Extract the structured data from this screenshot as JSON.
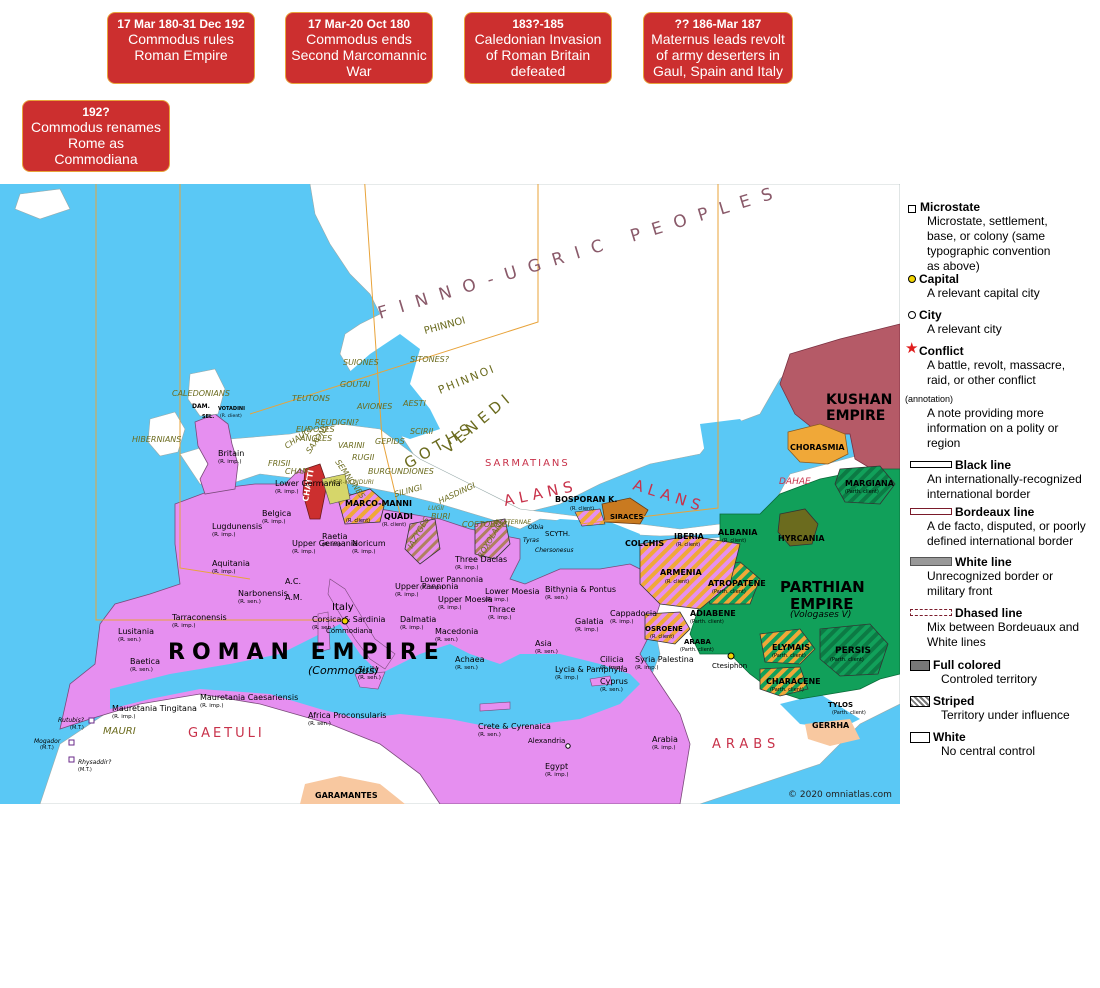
{
  "callouts": [
    {
      "date": "17 Mar 180-31 Dec 192",
      "text": "Commodus rules Roman Empire"
    },
    {
      "date": "17 Mar-20 Oct 180",
      "text": "Commodus ends Second Marcomannic War"
    },
    {
      "date": "183?-185",
      "text": "Caledonian Invasion of Roman Britain defeated"
    },
    {
      "date": "?? 186-Mar 187",
      "text": "Maternus leads revolt of army deserters in Gaul, Spain and Italy"
    },
    {
      "date": "192?",
      "text": "Commodus renames Rome as Commodiana"
    }
  ],
  "colors": {
    "sea": "#5ac8f5",
    "land": "#ffffff",
    "roman": "#e68ff0",
    "parthian": "#11a05a",
    "kushan": "#b55a67",
    "orange": "#f0a838",
    "peach": "#f8c8a0",
    "olive": "#6b6b1e",
    "callout_bg": "#cc2f2f",
    "callout_border": "#e8a33a",
    "people_red": "#c8324a",
    "people_olive": "#6b6b1e",
    "people_mauve": "#8a5a6a"
  },
  "map": {
    "empires": {
      "roman": "ROMAN EMPIRE",
      "roman_ruler": "(Commodus)",
      "parthian_1": "PARTHIAN",
      "parthian_2": "EMPIRE",
      "parthian_ruler": "(Vologases V)",
      "kushan_1": "KUSHAN",
      "kushan_2": "EMPIRE"
    },
    "peoples_large": {
      "finno_ugric": "FINNO-UGRIC PEOPLES",
      "goths": "GOTHS",
      "venedi": "VENEDI",
      "alans_1": "ALANS",
      "alans_2": "ALANS",
      "arabs": "ARABS",
      "gaetuli": "GAETULI",
      "sarmatians": "SARMATIANS",
      "mauri": "MAURI",
      "phinnoi_1": "PHINNOI",
      "phinnoi_2": "PHINNOI",
      "dahae": "DAHAE"
    },
    "peoples_small": {
      "caledonians": "CALEDONIANS",
      "hibernians": "HIBERNIANS",
      "suiones": "SUIONES",
      "sitones": "SITONES?",
      "goutai": "GOUTAI",
      "teutons": "TEUTONS",
      "aviones": "AVIONES",
      "aesti": "AESTI",
      "reudigni": "REUDIGNI?",
      "eudoses": "EUDOSES",
      "angles": "ANGLES",
      "saxons": "SAXONS",
      "varini": "VARINI",
      "semnones": "SEMNONES",
      "gepids": "GEPIDS",
      "scirii": "SCIRII",
      "rugii": "RUGII",
      "burgundiones": "BURGUNDIONES",
      "frisii": "FRISII",
      "chauci": "CHAUCI",
      "cham": "CHAM.",
      "silingi": "SILINGI",
      "hasdingi": "HASDINGI",
      "buri": "BURI",
      "lugii": "LUGII",
      "hermunduri": "HER-MUNDURI",
      "costoboci": "COSTOBOCI",
      "bastarnae": "BASTERNAE",
      "iazyges": "IAZYGES",
      "roxolani": "ROXOLANI"
    },
    "clients": {
      "chatti": "CHATTI",
      "marcomanni": "MARCO-MANNI",
      "marcomanni_sub": "(R. client)",
      "quadi": "QUADI",
      "quadi_sub": "(R. client)",
      "damnonii": "DAM.",
      "votadini": "VOTADINI",
      "votadini_sub": "(R. client)",
      "selg": "SEL.",
      "bosporan": "BOSPORAN K.",
      "bosporan_sub": "(R. client)",
      "siraces": "SIRACES",
      "scythia": "SCYTH.",
      "chorasmia": "CHORASMIA",
      "iberia": "IBERIA",
      "iberia_sub": "(R. client)",
      "albania": "ALBANIA",
      "albania_sub": "(R. client)",
      "colchis": "COLCHIS",
      "hyrcania": "HYRCANIA",
      "margiana": "MARGIANA",
      "margiana_sub": "(Parth. client)",
      "armenia": "ARMENIA",
      "armenia_sub": "(R. client)",
      "atropatene": "ATROPATENE",
      "atropatene_sub": "(Parth. client)",
      "adiabene": "ADIABENE",
      "adiabene_sub": "(Parth. client)",
      "osroene": "OSROENE",
      "osroene_sub": "(R. client)",
      "araba": "ARABA",
      "araba_sub": "(Parth. client)",
      "elymais": "ELYMAIS",
      "elymais_sub": "(Parth. client)",
      "persis": "PERSIS",
      "persis_sub": "(Parth. client)",
      "characene": "CHARACENE",
      "characene_sub": "(Parth. client)",
      "tylos": "TYLOS",
      "tylos_sub": "(Parth. client)",
      "gerrha": "GERRHA",
      "garamantes": "GARAMANTES"
    },
    "provinces": [
      {
        "name": "Britain",
        "sub": "(R. imp.)"
      },
      {
        "name": "Lower Germania",
        "sub": "(R. imp.)"
      },
      {
        "name": "Belgica",
        "sub": "(R. imp.)"
      },
      {
        "name": "Lugdunensis",
        "sub": "(R. imp.)"
      },
      {
        "name": "Upper Germania",
        "sub": "(R. imp.)"
      },
      {
        "name": "Raetia",
        "sub": "(R. imp.)"
      },
      {
        "name": "Noricum",
        "sub": "(R. imp.)"
      },
      {
        "name": "Aquitania",
        "sub": "(R. imp.)"
      },
      {
        "name": "Narbonensis",
        "sub": "(R. sen.)"
      },
      {
        "name": "A.C.",
        "sub": ""
      },
      {
        "name": "A.M.",
        "sub": ""
      },
      {
        "name": "Upper Pannonia",
        "sub": "(R. imp.)"
      },
      {
        "name": "Lower Pannonia",
        "sub": "(R. imp.)"
      },
      {
        "name": "Three Dacias",
        "sub": "(R. imp.)"
      },
      {
        "name": "Dalmatia",
        "sub": "(R. imp.)"
      },
      {
        "name": "Upper Moesia",
        "sub": "(R. imp.)"
      },
      {
        "name": "Lower Moesia",
        "sub": "(R. imp.)"
      },
      {
        "name": "Thrace",
        "sub": "(R. imp.)"
      },
      {
        "name": "Bithynia & Pontus",
        "sub": "(R. sen.)"
      },
      {
        "name": "Galatia",
        "sub": "(R. imp.)"
      },
      {
        "name": "Cappadocia",
        "sub": "(R. imp.)"
      },
      {
        "name": "Tarraconensis",
        "sub": "(R. imp.)"
      },
      {
        "name": "Lusitania",
        "sub": "(R. sen.)"
      },
      {
        "name": "Baetica",
        "sub": "(R. sen.)"
      },
      {
        "name": "Corsica & Sardinia",
        "sub": "(R. sen.)"
      },
      {
        "name": "Sicily",
        "sub": "(R. sen.)"
      },
      {
        "name": "Macedonia",
        "sub": "(R. sen.)"
      },
      {
        "name": "Achaea",
        "sub": "(R. sen.)"
      },
      {
        "name": "Asia",
        "sub": "(R. sen.)"
      },
      {
        "name": "Lycia & Pamphylia",
        "sub": "(R. imp.)"
      },
      {
        "name": "Cilicia",
        "sub": "(R. imp.)"
      },
      {
        "name": "Cyprus",
        "sub": "(R. sen.)"
      },
      {
        "name": "Syria Palestina",
        "sub": "(R. imp.)"
      },
      {
        "name": "Mauretania Tingitana",
        "sub": "(R. imp.)"
      },
      {
        "name": "Mauretania Caesariensis",
        "sub": "(R. imp.)"
      },
      {
        "name": "Africa Proconsularis",
        "sub": "(R. sen.)"
      },
      {
        "name": "Crete & Cyrenaica",
        "sub": "(R. sen.)"
      },
      {
        "name": "Egypt",
        "sub": "(R. imp.)"
      },
      {
        "name": "Arabia",
        "sub": "(R. imp.)"
      }
    ],
    "cities": {
      "italy": "Italy",
      "commodiana": "Commodiana",
      "ctesiphon": "Ctesiphon",
      "alexandria": "Alexandria",
      "tyras": "Tyras",
      "chersonesus": "Chersonesus",
      "olbia": "Olbia",
      "rutubis": "Rutubis?",
      "rutubis_sub": "(M.T.)",
      "mogador": "Mogador",
      "mogador_sub": "(M.T.)",
      "rhysaddir": "Rhysaddir?",
      "rhysaddir_sub": "(M.T.)"
    },
    "copyright": "© 2020 omniatlas.com"
  },
  "legend": [
    {
      "title": "Microstate",
      "desc": "Microstate, settlement, base, or colony (same typographic convention as above)",
      "symbol": "microstate-square"
    },
    {
      "title": "Capital",
      "desc": "A relevant capital city",
      "symbol": "capital-dot"
    },
    {
      "title": "City",
      "desc": "A relevant city",
      "symbol": "city-dot"
    },
    {
      "title": "Conflict",
      "desc": "A battle, revolt, massacre, raid, or other conflict",
      "symbol": "conflict-star"
    },
    {
      "title": "(annotation)",
      "desc": "A note providing more information on a polity or region",
      "symbol": "none"
    },
    {
      "title": "Black line",
      "desc": "An internationally-recognized international border",
      "symbol": "black-line"
    },
    {
      "title": "Bordeaux line",
      "desc": "A de facto, disputed, or poorly defined international border",
      "symbol": "bordeaux-line"
    },
    {
      "title": "White line",
      "desc": "Unrecognized border or military front",
      "symbol": "white-line"
    },
    {
      "title": "Dhased line",
      "desc": "Mix between Bordeuaux and White lines",
      "symbol": "dashed-line"
    },
    {
      "title": "Full colored",
      "desc": "Controled territory",
      "symbol": "full-swatch"
    },
    {
      "title": "Striped",
      "desc": "Territory under influence",
      "symbol": "striped-swatch"
    },
    {
      "title": "White",
      "desc": "No central control",
      "symbol": "white-swatch"
    }
  ]
}
